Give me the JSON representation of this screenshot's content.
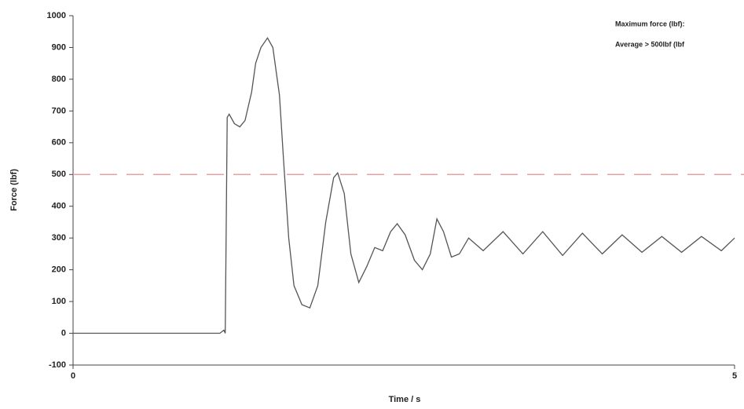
{
  "chart_data": {
    "type": "line",
    "xlabel": "Time / s",
    "ylabel": "Force (lbf)",
    "annotations": [
      "Maximum force (lbf):",
      "Average > 500lbf (lbf"
    ],
    "xlim": [
      0,
      5
    ],
    "xticks": [
      0,
      5
    ],
    "ylim": [
      -100,
      1000
    ],
    "yticks": [
      -100,
      0,
      100,
      200,
      300,
      400,
      500,
      600,
      700,
      800,
      900,
      1000
    ],
    "threshold": 500,
    "threshold_color": "#e8a0a0",
    "series": [
      {
        "name": "Force",
        "color": "#555555",
        "x": [
          0,
          1.0,
          1.11,
          1.14,
          1.15,
          1.165,
          1.18,
          1.22,
          1.26,
          1.3,
          1.35,
          1.38,
          1.42,
          1.47,
          1.51,
          1.56,
          1.59,
          1.63,
          1.67,
          1.73,
          1.79,
          1.85,
          1.91,
          1.97,
          2.0,
          2.05,
          2.1,
          2.16,
          2.22,
          2.28,
          2.34,
          2.4,
          2.45,
          2.51,
          2.58,
          2.64,
          2.7,
          2.75,
          2.8,
          2.86,
          2.92,
          2.99,
          3.1,
          3.25,
          3.4,
          3.55,
          3.7,
          3.85,
          4.0,
          4.15,
          4.3,
          4.45,
          4.6,
          4.75,
          4.9,
          5.0
        ],
        "values": [
          0,
          0,
          0,
          10,
          0,
          680,
          690,
          660,
          650,
          670,
          760,
          850,
          900,
          930,
          900,
          750,
          550,
          300,
          150,
          90,
          80,
          150,
          350,
          490,
          505,
          440,
          250,
          160,
          210,
          270,
          260,
          320,
          345,
          310,
          230,
          200,
          250,
          360,
          320,
          240,
          250,
          300,
          260,
          320,
          250,
          320,
          245,
          315,
          250,
          310,
          255,
          305,
          255,
          305,
          260,
          300
        ]
      }
    ]
  }
}
